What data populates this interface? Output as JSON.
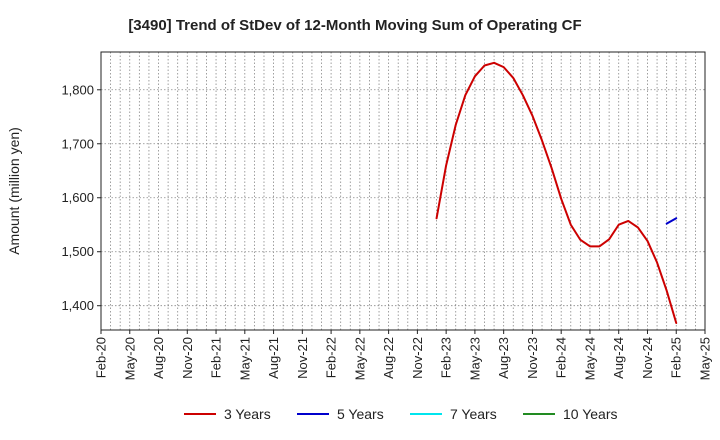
{
  "chart_data": {
    "type": "line",
    "title": "[3490]  Trend of StDev of 12-Month Moving Sum of Operating CF",
    "xlabel": "",
    "ylabel": "Amount (million yen)",
    "x_start": "Feb-20",
    "x_end": "May-25",
    "x_tick_labels": [
      "Feb-20",
      "May-20",
      "Aug-20",
      "Nov-20",
      "Feb-21",
      "May-21",
      "Aug-21",
      "Nov-21",
      "Feb-22",
      "May-22",
      "Aug-22",
      "Nov-22",
      "Feb-23",
      "May-23",
      "Aug-23",
      "Nov-23",
      "Feb-24",
      "May-24",
      "Aug-24",
      "Nov-24",
      "Feb-25",
      "May-25"
    ],
    "ylim": [
      1355,
      1870
    ],
    "y_ticks": [
      1400,
      1500,
      1600,
      1700,
      1800
    ],
    "y_tick_labels": [
      "1,400",
      "1,500",
      "1,600",
      "1,700",
      "1,800"
    ],
    "grid": true,
    "legend_position": "bottom",
    "series": [
      {
        "name": "3 Years",
        "color": "#cc0000",
        "x": [
          "Jan-23",
          "Feb-23",
          "Mar-23",
          "Apr-23",
          "May-23",
          "Jun-23",
          "Jul-23",
          "Aug-23",
          "Sep-23",
          "Oct-23",
          "Nov-23",
          "Dec-23",
          "Jan-24",
          "Feb-24",
          "Mar-24",
          "Apr-24",
          "May-24",
          "Jun-24",
          "Jul-24",
          "Aug-24",
          "Sep-24",
          "Oct-24",
          "Nov-24",
          "Dec-24",
          "Jan-25",
          "Feb-25"
        ],
        "values": [
          1562,
          1660,
          1735,
          1790,
          1825,
          1845,
          1850,
          1842,
          1822,
          1790,
          1752,
          1706,
          1655,
          1598,
          1550,
          1522,
          1510,
          1510,
          1523,
          1550,
          1557,
          1545,
          1520,
          1480,
          1428,
          1368
        ]
      },
      {
        "name": "5 Years",
        "color": "#0000cc",
        "x": [
          "Jan-25",
          "Feb-25"
        ],
        "values": [
          1552,
          1562
        ]
      },
      {
        "name": "7 Years",
        "color": "#00e5ee",
        "x": [],
        "values": []
      },
      {
        "name": "10 Years",
        "color": "#228b22",
        "x": [],
        "values": []
      }
    ]
  }
}
